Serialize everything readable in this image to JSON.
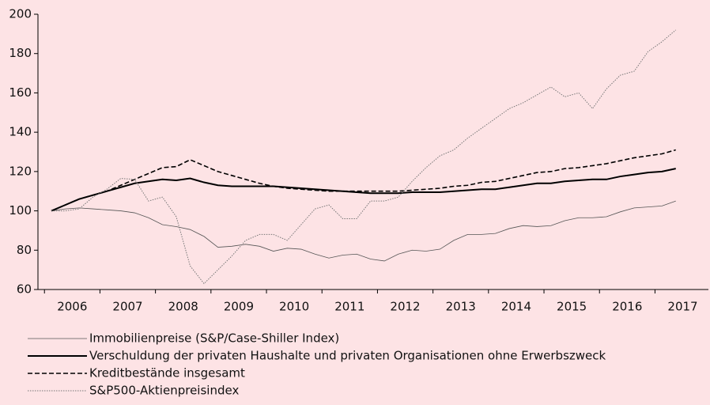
{
  "chart_data": {
    "type": "line",
    "categories": [
      "2006",
      null,
      null,
      null,
      "2007",
      null,
      null,
      null,
      "2008",
      null,
      null,
      null,
      "2009",
      null,
      null,
      null,
      "2010",
      null,
      null,
      null,
      "2011",
      null,
      null,
      null,
      "2012",
      null,
      null,
      null,
      "2013",
      null,
      null,
      null,
      "2014",
      null,
      null,
      null,
      "2015",
      null,
      null,
      null,
      "2016",
      null,
      null,
      null,
      "2017",
      null
    ],
    "ylim": [
      60,
      200
    ],
    "yticks": [
      60,
      80,
      100,
      120,
      140,
      160,
      180,
      200
    ],
    "grid": false,
    "legend": "bottom",
    "series": [
      {
        "name": "Immobilienpreise (S&P/Case-Shiller Index)",
        "color": "#555555",
        "style": "solid",
        "width": 0.8,
        "values": [
          100,
          101,
          101.5,
          101,
          100.5,
          100,
          99,
          96.5,
          93,
          92,
          90.5,
          87,
          81.5,
          82,
          83,
          82,
          79.5,
          81,
          80.5,
          78,
          76,
          77.5,
          78,
          75.5,
          74.5,
          78,
          80,
          79.5,
          80.5,
          85,
          88,
          88,
          88.5,
          91,
          92.5,
          92,
          92.5,
          95,
          96.5,
          96.5,
          97,
          99.5,
          101.5,
          102,
          102.5,
          105
        ]
      },
      {
        "name": "Verschuldung der privaten Haushalte und privaten Organisationen ohne Erwerbszweck",
        "color": "#000000",
        "style": "solid",
        "width": 2,
        "values": [
          100,
          103,
          106,
          108,
          110,
          112,
          114,
          115,
          116,
          115.5,
          116.5,
          114.5,
          113,
          112.5,
          112.5,
          112.5,
          112.5,
          112,
          111.5,
          111,
          110.5,
          110,
          109.5,
          109,
          109,
          109,
          109.5,
          109.5,
          109.5,
          110,
          110.5,
          111,
          111,
          112,
          113,
          114,
          114,
          115,
          115.5,
          116,
          116,
          117.5,
          118.5,
          119.5,
          120,
          121.5
        ]
      },
      {
        "name": "Kreditbestände insgesamt",
        "color": "#000000",
        "style": "dashed",
        "width": 1.6,
        "values": [
          100,
          103,
          106,
          108,
          110,
          113,
          116,
          119,
          122,
          122.5,
          126,
          123,
          120,
          118,
          116,
          114,
          112.5,
          111.5,
          111,
          110.5,
          110,
          110,
          110,
          110,
          110,
          110,
          110.5,
          111,
          111.5,
          112.5,
          113,
          114.5,
          115,
          116.5,
          118,
          119.5,
          120,
          121.5,
          122,
          123,
          124,
          125.5,
          127,
          128,
          129,
          131
        ]
      },
      {
        "name": "S&P500-Aktienpreisindex",
        "color": "#777777",
        "style": "dotted",
        "width": 1,
        "values": [
          100,
          100,
          101,
          107,
          111,
          116.5,
          116,
          105,
          107,
          97,
          72,
          63,
          70,
          77,
          85,
          88,
          88,
          85,
          93,
          101,
          103,
          96,
          96,
          105,
          105,
          107,
          115,
          122,
          128,
          131,
          137,
          142,
          147,
          152,
          155,
          159,
          163,
          158,
          160,
          152,
          162,
          169,
          171,
          181,
          186,
          192
        ]
      }
    ]
  }
}
